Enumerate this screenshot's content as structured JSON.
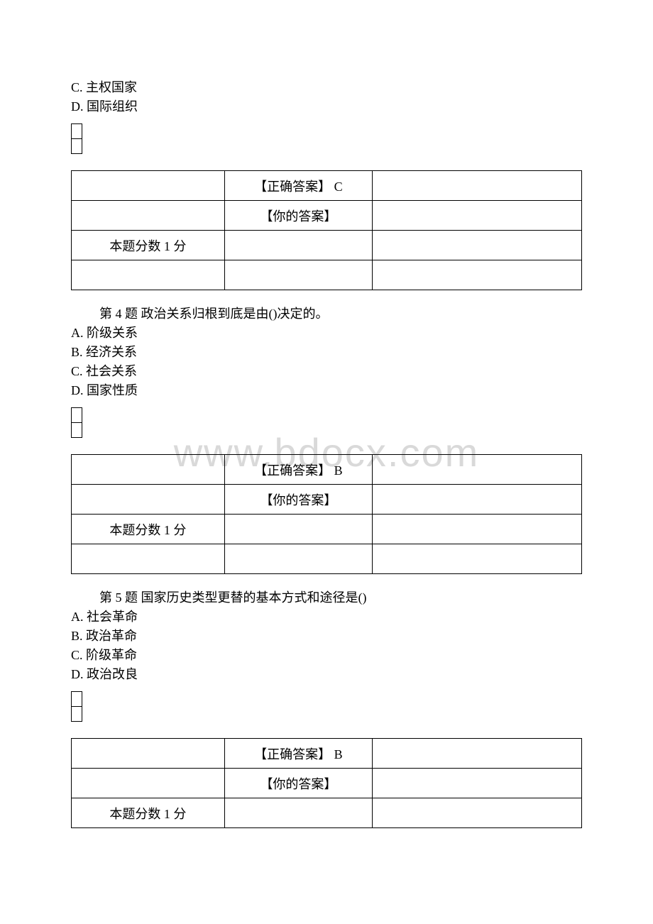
{
  "watermark": "www.bdocx.com",
  "labels": {
    "correctAnswer": "【正确答案】",
    "yourAnswer": "【你的答案】",
    "pointsPrefix": "本题分数",
    "pointsValue": " 1 ",
    "pointsSuffix": "分",
    "questionPrefix": "第 ",
    "questionSuffix": " 题 "
  },
  "q3": {
    "extraOptions": [
      {
        "letter": "C.",
        "text": " 主权国家"
      },
      {
        "letter": "D.",
        "text": " 国际组织"
      }
    ],
    "correct": " C"
  },
  "q4": {
    "number": "4",
    "stem": "政治关系归根到底是由()决定的。",
    "options": [
      {
        "letter": "A.",
        "text": " 阶级关系"
      },
      {
        "letter": "B.",
        "text": " 经济关系"
      },
      {
        "letter": "C.",
        "text": " 社会关系"
      },
      {
        "letter": "D.",
        "text": " 国家性质"
      }
    ],
    "correct": " B"
  },
  "q5": {
    "number": "5",
    "stem": "国家历史类型更替的基本方式和途径是()",
    "options": [
      {
        "letter": "A.",
        "text": " 社会革命"
      },
      {
        "letter": "B.",
        "text": " 政治革命"
      },
      {
        "letter": "C.",
        "text": " 阶级革命"
      },
      {
        "letter": "D.",
        "text": " 政治改良"
      }
    ],
    "correct": " B"
  }
}
